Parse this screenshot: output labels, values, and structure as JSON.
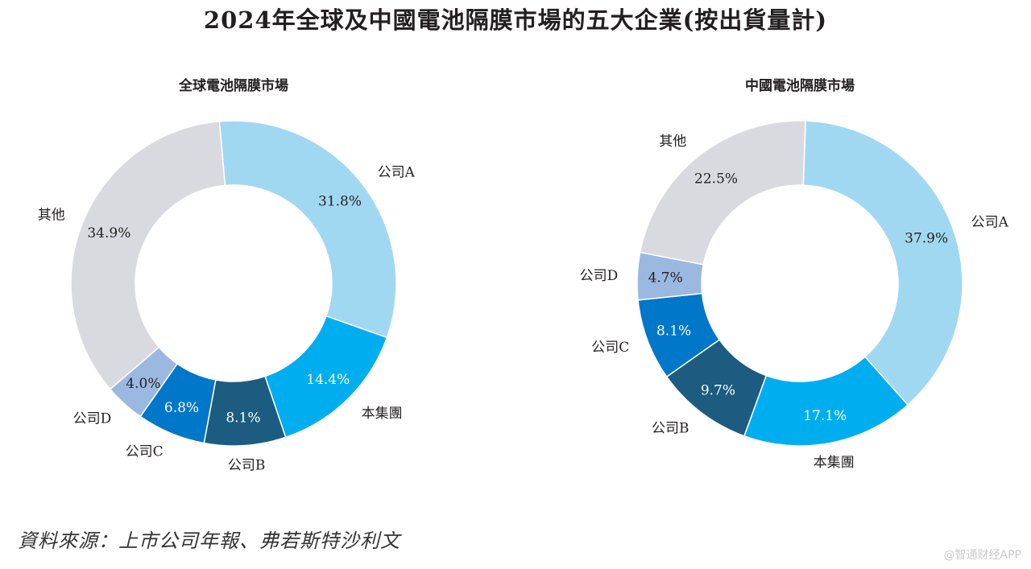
{
  "title": "2024年全球及中國電池隔膜市場的五大企業(按出貨量計)",
  "source": "資料來源：上市公司年報、弗若斯特沙利文",
  "watermark": "@智通财经APP",
  "colors": {
    "公司A": "#a1d8f1",
    "本集團": "#00aeef",
    "公司B": "#1b5c80",
    "公司C": "#0077c8",
    "公司D": "#9bb8e0",
    "其他": "#d9dadf"
  },
  "chart_data": [
    {
      "type": "pie",
      "title": "全球電池隔膜市場",
      "categories": [
        "公司A",
        "本集團",
        "公司B",
        "公司C",
        "公司D",
        "其他"
      ],
      "values": [
        31.8,
        14.4,
        8.1,
        6.8,
        4.0,
        34.9
      ],
      "value_labels": [
        "31.8%",
        "14.4%",
        "8.1%",
        "6.8%",
        "4.0%",
        "34.9%"
      ],
      "unit": "%"
    },
    {
      "type": "pie",
      "title": "中國電池隔膜市場",
      "categories": [
        "公司A",
        "本集團",
        "公司B",
        "公司C",
        "公司D",
        "其他"
      ],
      "values": [
        37.9,
        17.1,
        9.7,
        8.1,
        4.7,
        22.5
      ],
      "value_labels": [
        "37.9%",
        "17.1%",
        "9.7%",
        "8.1%",
        "4.7%",
        "22.5%"
      ],
      "unit": "%"
    }
  ]
}
